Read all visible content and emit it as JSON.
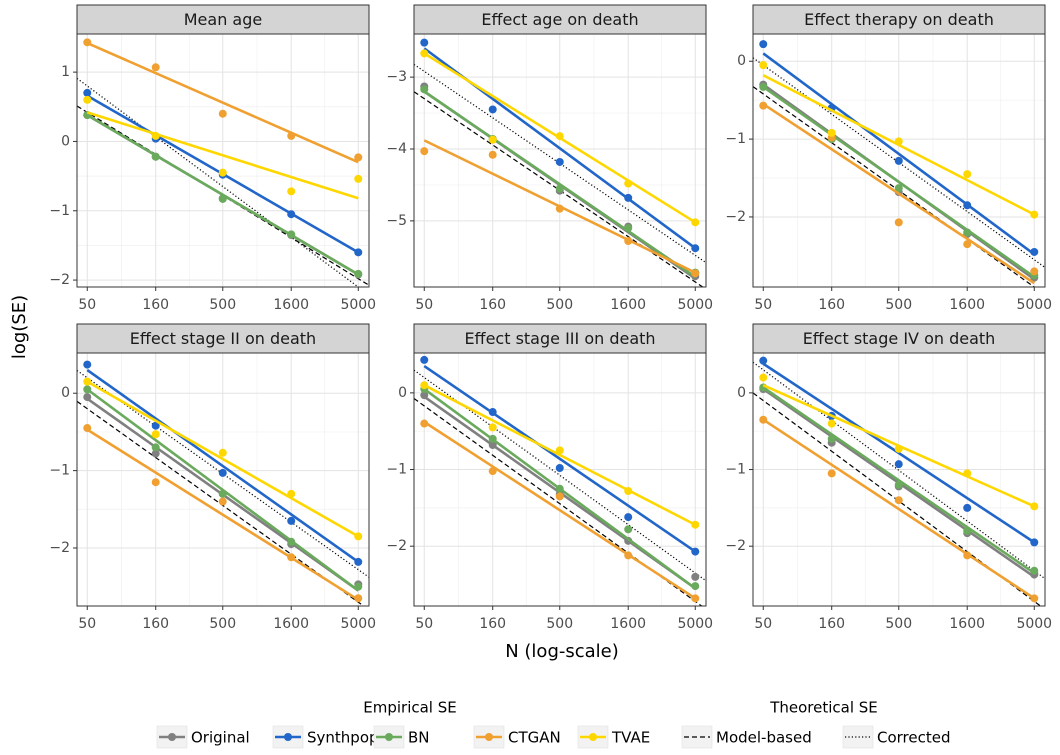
{
  "chart_data": {
    "type": "line",
    "x_label": "N (log-scale)",
    "y_label": "log(SE)",
    "x_scale": "log",
    "x_ticks": [
      50,
      160,
      500,
      1600,
      5000
    ],
    "x_tick_labels": [
      "50",
      "160",
      "500",
      "1600",
      "5000"
    ],
    "x_lim": [
      42,
      6000
    ],
    "grid": true,
    "legend_position": "bottom",
    "legend": {
      "empirical_title": "Empirical SE",
      "theoretical_title": "Theoretical SE",
      "empirical": [
        {
          "label": "Original",
          "color": "#808080"
        },
        {
          "label": "Synthpop",
          "color": "#2166c8"
        },
        {
          "label": "BN",
          "color": "#6aaa5c"
        },
        {
          "label": "CTGAN",
          "color": "#f0a030"
        },
        {
          "label": "TVAE",
          "color": "#ffd700"
        }
      ],
      "theoretical": [
        {
          "label": "Model-based",
          "style": "dashed"
        },
        {
          "label": "Corrected",
          "style": "dotted"
        }
      ]
    },
    "panels": [
      {
        "title": "Mean age",
        "ylim": [
          -2.1,
          1.55
        ],
        "y_ticks": [
          -2,
          -1,
          0,
          1
        ],
        "y_tick_labels": [
          "−2",
          "−1",
          "0",
          "1"
        ],
        "series": [
          {
            "name": "Original",
            "color": "#808080",
            "points": [
              0.38,
              -0.22,
              -0.82,
              -1.35,
              -1.92
            ],
            "line": [
              0.38,
              -1.92
            ]
          },
          {
            "name": "Synthpop",
            "color": "#2166c8",
            "points": [
              0.7,
              0.04,
              -0.48,
              -1.05,
              -1.6
            ],
            "line": [
              0.66,
              -1.6
            ]
          },
          {
            "name": "BN",
            "color": "#6aaa5c",
            "points": [
              0.38,
              -0.22,
              -0.83,
              -1.34,
              -1.91
            ],
            "line": [
              0.38,
              -1.92
            ]
          },
          {
            "name": "CTGAN",
            "color": "#f0a030",
            "points": [
              1.43,
              1.07,
              0.4,
              0.08,
              -0.23
            ],
            "line": [
              1.42,
              -0.3
            ]
          },
          {
            "name": "TVAE",
            "color": "#ffd700",
            "points": [
              0.6,
              0.08,
              -0.45,
              -0.72,
              -0.54
            ],
            "line": [
              0.42,
              -0.82
            ]
          }
        ],
        "model_based": [
          0.42,
          -1.98
        ],
        "corrected": [
          0.8,
          -2.1
        ]
      },
      {
        "title": "Effect age on death",
        "ylim": [
          -5.92,
          -2.4
        ],
        "y_ticks": [
          -5,
          -4,
          -3
        ],
        "y_tick_labels": [
          "−5",
          "−4",
          "−3"
        ],
        "series": [
          {
            "name": "Original",
            "color": "#808080",
            "points": [
              -3.13,
              -3.87,
              -4.58,
              -5.08,
              -5.77
            ],
            "line": [
              -3.2,
              -5.8
            ]
          },
          {
            "name": "Synthpop",
            "color": "#2166c8",
            "points": [
              -2.52,
              -3.45,
              -4.18,
              -4.68,
              -5.38
            ],
            "line": [
              -2.6,
              -5.38
            ]
          },
          {
            "name": "BN",
            "color": "#6aaa5c",
            "points": [
              -3.17,
              -3.86,
              -4.55,
              -5.1,
              -5.72
            ],
            "line": [
              -3.2,
              -5.78
            ]
          },
          {
            "name": "CTGAN",
            "color": "#f0a030",
            "points": [
              -4.03,
              -4.08,
              -4.83,
              -5.28,
              -5.73
            ],
            "line": [
              -3.88,
              -5.72
            ]
          },
          {
            "name": "TVAE",
            "color": "#ffd700",
            "points": [
              -2.67,
              -3.87,
              -3.82,
              -4.48,
              -5.02
            ],
            "line": [
              -2.67,
              -5.02
            ]
          }
        ],
        "model_based": [
          -3.3,
          -5.85
        ],
        "corrected": [
          -2.92,
          -5.48
        ]
      },
      {
        "title": "Effect therapy on death",
        "ylim": [
          -2.9,
          0.35
        ],
        "y_ticks": [
          -2,
          -1,
          0
        ],
        "y_tick_labels": [
          "−2",
          "−1",
          "0"
        ],
        "series": [
          {
            "name": "Original",
            "color": "#808080",
            "points": [
              -0.3,
              -1.0,
              -1.68,
              -2.22,
              -2.78
            ],
            "line": [
              -0.3,
              -2.8
            ]
          },
          {
            "name": "Synthpop",
            "color": "#2166c8",
            "points": [
              0.22,
              -0.6,
              -1.28,
              -1.85,
              -2.45
            ],
            "line": [
              0.1,
              -2.48
            ]
          },
          {
            "name": "BN",
            "color": "#6aaa5c",
            "points": [
              -0.33,
              -1.0,
              -1.63,
              -2.2,
              -2.75
            ],
            "line": [
              -0.33,
              -2.77
            ]
          },
          {
            "name": "CTGAN",
            "color": "#f0a030",
            "points": [
              -0.57,
              -0.98,
              -2.07,
              -2.35,
              -2.7
            ],
            "line": [
              -0.55,
              -2.85
            ]
          },
          {
            "name": "TVAE",
            "color": "#ffd700",
            "points": [
              -0.05,
              -0.92,
              -1.03,
              -1.45,
              -1.97
            ],
            "line": [
              -0.18,
              -1.97
            ]
          }
        ],
        "model_based": [
          -0.42,
          -2.9
        ],
        "corrected": [
          -0.05,
          -2.55
        ]
      },
      {
        "title": "Effect stage II on death",
        "ylim": [
          -2.75,
          0.52
        ],
        "y_ticks": [
          -2,
          -1,
          0
        ],
        "y_tick_labels": [
          "−2",
          "−1",
          "0"
        ],
        "series": [
          {
            "name": "Original",
            "color": "#808080",
            "points": [
              -0.05,
              -0.78,
              -1.3,
              -1.95,
              -2.47
            ],
            "line": [
              -0.07,
              -2.55
            ]
          },
          {
            "name": "Synthpop",
            "color": "#2166c8",
            "points": [
              0.37,
              -0.42,
              -1.03,
              -1.65,
              -2.18
            ],
            "line": [
              0.3,
              -2.18
            ]
          },
          {
            "name": "BN",
            "color": "#6aaa5c",
            "points": [
              0.05,
              -0.7,
              -1.3,
              -1.92,
              -2.5
            ],
            "line": [
              0.05,
              -2.55
            ]
          },
          {
            "name": "CTGAN",
            "color": "#f0a030",
            "points": [
              -0.45,
              -1.15,
              -1.4,
              -2.12,
              -2.65
            ],
            "line": [
              -0.47,
              -2.67
            ]
          },
          {
            "name": "TVAE",
            "color": "#ffd700",
            "points": [
              0.15,
              -0.53,
              -0.77,
              -1.3,
              -1.85
            ],
            "line": [
              0.15,
              -1.85
            ]
          }
        ],
        "model_based": [
          -0.2,
          -2.7
        ],
        "corrected": [
          0.2,
          -2.28
        ]
      },
      {
        "title": "Effect stage III on death",
        "ylim": [
          -2.78,
          0.52
        ],
        "y_ticks": [
          -2,
          -1,
          0
        ],
        "y_tick_labels": [
          "−2",
          "−1",
          "0"
        ],
        "series": [
          {
            "name": "Original",
            "color": "#808080",
            "points": [
              -0.03,
              -0.68,
              -1.32,
              -1.93,
              -2.4
            ],
            "line": [
              -0.05,
              -2.55
            ]
          },
          {
            "name": "Synthpop",
            "color": "#2166c8",
            "points": [
              0.43,
              -0.25,
              -0.98,
              -1.62,
              -2.07
            ],
            "line": [
              0.35,
              -2.07
            ]
          },
          {
            "name": "BN",
            "color": "#6aaa5c",
            "points": [
              0.05,
              -0.6,
              -1.25,
              -1.78,
              -2.52
            ],
            "line": [
              0.05,
              -2.55
            ]
          },
          {
            "name": "CTGAN",
            "color": "#f0a030",
            "points": [
              -0.4,
              -1.02,
              -1.35,
              -2.12,
              -2.68
            ],
            "line": [
              -0.38,
              -2.68
            ]
          },
          {
            "name": "TVAE",
            "color": "#ffd700",
            "points": [
              0.1,
              -0.45,
              -0.75,
              -1.28,
              -1.72
            ],
            "line": [
              0.1,
              -1.72
            ]
          }
        ],
        "model_based": [
          -0.17,
          -2.72
        ],
        "corrected": [
          0.2,
          -2.35
        ]
      },
      {
        "title": "Effect stage IV on death",
        "ylim": [
          -2.78,
          0.52
        ],
        "y_ticks": [
          -2,
          -1,
          0
        ],
        "y_tick_labels": [
          "−2",
          "−1",
          "0"
        ],
        "series": [
          {
            "name": "Original",
            "color": "#808080",
            "points": [
              0.05,
              -0.65,
              -1.22,
              -1.83,
              -2.37
            ],
            "line": [
              0.05,
              -2.4
            ]
          },
          {
            "name": "Synthpop",
            "color": "#2166c8",
            "points": [
              0.42,
              -0.3,
              -0.93,
              -1.5,
              -1.95
            ],
            "line": [
              0.38,
              -1.95
            ]
          },
          {
            "name": "BN",
            "color": "#6aaa5c",
            "points": [
              0.07,
              -0.6,
              -1.2,
              -1.8,
              -2.32
            ],
            "line": [
              0.07,
              -2.35
            ]
          },
          {
            "name": "CTGAN",
            "color": "#f0a030",
            "points": [
              -0.35,
              -1.05,
              -1.4,
              -2.12,
              -2.68
            ],
            "line": [
              -0.35,
              -2.68
            ]
          },
          {
            "name": "TVAE",
            "color": "#ffd700",
            "points": [
              0.2,
              -0.4,
              -0.73,
              -1.05,
              -1.48
            ],
            "line": [
              0.1,
              -1.48
            ]
          }
        ],
        "model_based": [
          -0.1,
          -2.72
        ],
        "corrected": [
          0.3,
          -2.32
        ]
      }
    ]
  }
}
